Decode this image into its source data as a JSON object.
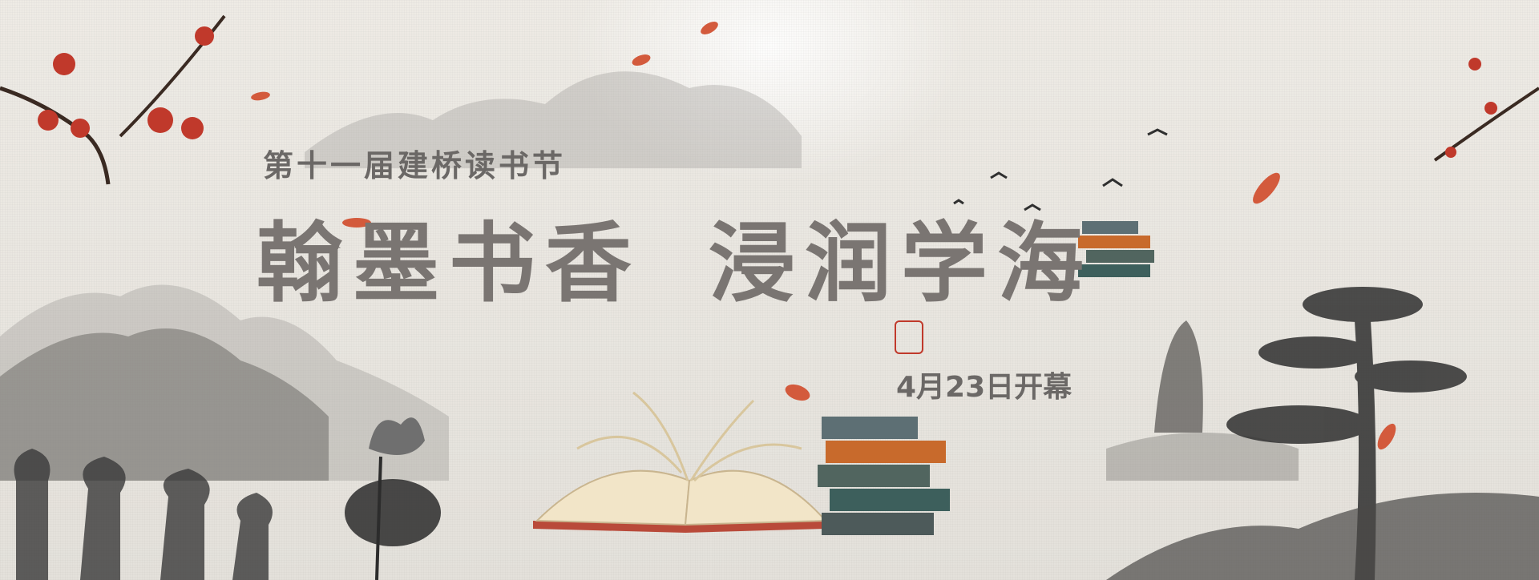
{
  "banner": {
    "subtitle": "第十一届建桥读书节",
    "title_left": "翰墨书香",
    "title_right": "浸润学海",
    "date": "4月23日开幕"
  },
  "colors": {
    "title_text": "#7a7572",
    "subtitle_text": "#6b6866",
    "blossom_red": "#c0392b",
    "ink_dark": "#3a3a3a"
  }
}
